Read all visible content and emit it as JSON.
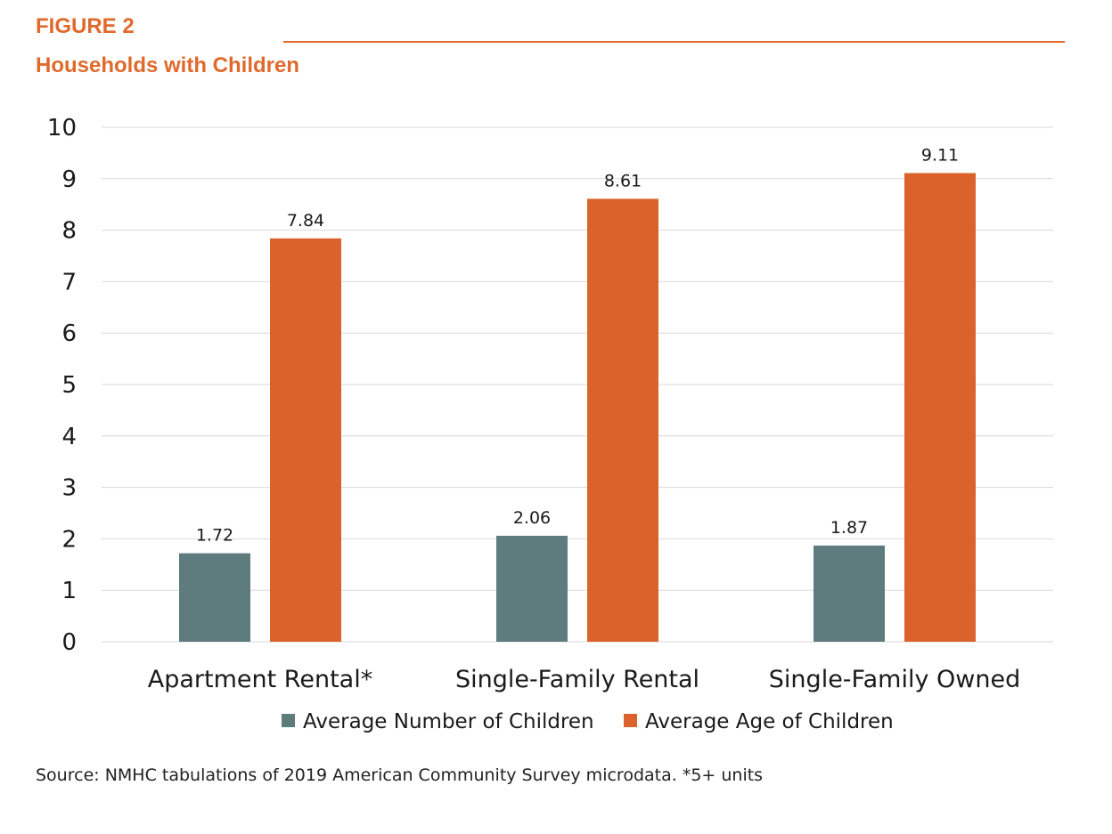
{
  "header": {
    "figure_label": "FIGURE 2",
    "title": "Households with Children"
  },
  "source_note": "Source: NMHC tabulations of 2019 American Community Survey microdata. *5+ units",
  "colors": {
    "accent": "#E06A2C",
    "series_number": "#5E7B7D",
    "series_age": "#DB622A",
    "gridline": "#D9D9D9",
    "text": "#1A1A1A"
  },
  "chart_data": {
    "type": "bar",
    "title": "Households with Children",
    "categories": [
      "Apartment Rental*",
      "Single-Family Rental",
      "Single-Family Owned"
    ],
    "series": [
      {
        "name": "Average Number of Children",
        "values": [
          1.72,
          2.06,
          1.87
        ],
        "labels": [
          "1.72",
          "2.06",
          "1.87"
        ]
      },
      {
        "name": "Average Age of Children",
        "values": [
          7.84,
          8.61,
          9.11
        ],
        "labels": [
          "7.84",
          "8.61",
          "9.11"
        ]
      }
    ],
    "yticks": [
      "0",
      "1",
      "2",
      "3",
      "4",
      "5",
      "6",
      "7",
      "8",
      "9",
      "10"
    ],
    "ylim": [
      0,
      10
    ],
    "xlabel": "",
    "ylabel": "",
    "grid": true,
    "legend": "bottom"
  }
}
